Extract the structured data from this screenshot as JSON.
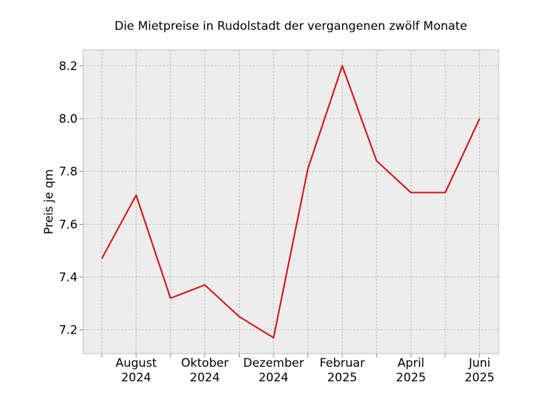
{
  "chart_data": {
    "type": "line",
    "title": "Die Mietpreise in Rudolstadt der vergangenen zwölf Monate",
    "xlabel": "",
    "ylabel": "Preis je qm",
    "x": [
      "2024-07",
      "2024-08",
      "2024-09",
      "2024-10",
      "2024-11",
      "2024-12",
      "2025-01",
      "2025-02",
      "2025-03",
      "2025-04",
      "2025-05",
      "2025-06"
    ],
    "series": [
      {
        "values": [
          7.47,
          7.71,
          7.32,
          7.37,
          7.25,
          7.17,
          7.81,
          8.2,
          7.84,
          7.72,
          7.72,
          8.0
        ],
        "color": "#d7141a"
      }
    ],
    "ylim": [
      7.11,
      8.26
    ],
    "yticks": [
      7.2,
      7.4,
      7.6,
      7.8,
      8.0,
      8.2
    ],
    "ytick_labels": [
      "7.2",
      "7.4",
      "7.6",
      "7.8",
      "8.0",
      "8.2"
    ],
    "xtick_labels": [
      {
        "month": "August",
        "year": "2024"
      },
      {
        "month": "Oktober",
        "year": "2024"
      },
      {
        "month": "Dezember",
        "year": "2024"
      },
      {
        "month": "Februar",
        "year": "2025"
      },
      {
        "month": "April",
        "year": "2025"
      },
      {
        "month": "Juni",
        "year": "2025"
      }
    ],
    "grid": true,
    "background": "#ededed",
    "frame_color": "#bcbcbc"
  }
}
